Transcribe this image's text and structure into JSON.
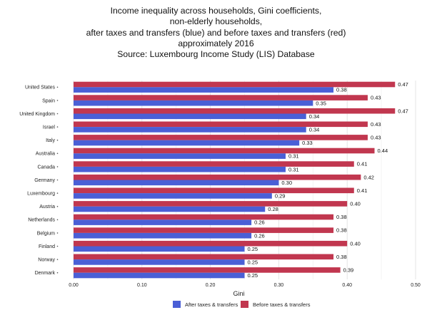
{
  "title_lines": [
    "Income inequality across households, Gini coefficients,",
    "non-elderly households,",
    "after taxes and transfers (blue) and before taxes and transfers (red)",
    "approximately 2016",
    "Source:  Luxembourg Income Study (LIS) Database"
  ],
  "colors": {
    "after": "#4a5fd6",
    "before": "#c1374f"
  },
  "chart_data": {
    "type": "bar",
    "orientation": "horizontal",
    "title": "Income inequality across households, Gini coefficients, non-elderly households, after taxes and transfers (blue) and before taxes and transfers (red) approximately 2016 Source:  Luxembourg Income Study (LIS) Database",
    "xlabel": "Gini",
    "ylabel": "",
    "xlim": [
      0,
      0.5
    ],
    "xticks": [
      "0.00",
      "0.10",
      "0.20",
      "0.30",
      "0.40",
      "0.50"
    ],
    "categories": [
      "United States",
      "Spain",
      "United Kingdom",
      "Israel",
      "Italy",
      "Australia",
      "Canada",
      "Germany",
      "Luxembourg",
      "Austria",
      "Netherlands",
      "Belgium",
      "Finland",
      "Norway",
      "Denmark"
    ],
    "series": [
      {
        "name": "Before taxes & transfers",
        "color": "#c1374f",
        "values": [
          0.47,
          0.43,
          0.47,
          0.43,
          0.43,
          0.44,
          0.41,
          0.42,
          0.41,
          0.4,
          0.38,
          0.38,
          0.4,
          0.38,
          0.39
        ]
      },
      {
        "name": "After taxes & transfers",
        "color": "#4a5fd6",
        "values": [
          0.38,
          0.35,
          0.34,
          0.34,
          0.33,
          0.31,
          0.31,
          0.3,
          0.29,
          0.28,
          0.26,
          0.26,
          0.25,
          0.25,
          0.25
        ]
      }
    ],
    "legend": {
      "position": "bottom",
      "items": [
        {
          "label": "After taxes & transfers",
          "color": "#4a5fd6"
        },
        {
          "label": "Before taxes & transfers",
          "color": "#c1374f"
        }
      ]
    },
    "grid": true
  }
}
